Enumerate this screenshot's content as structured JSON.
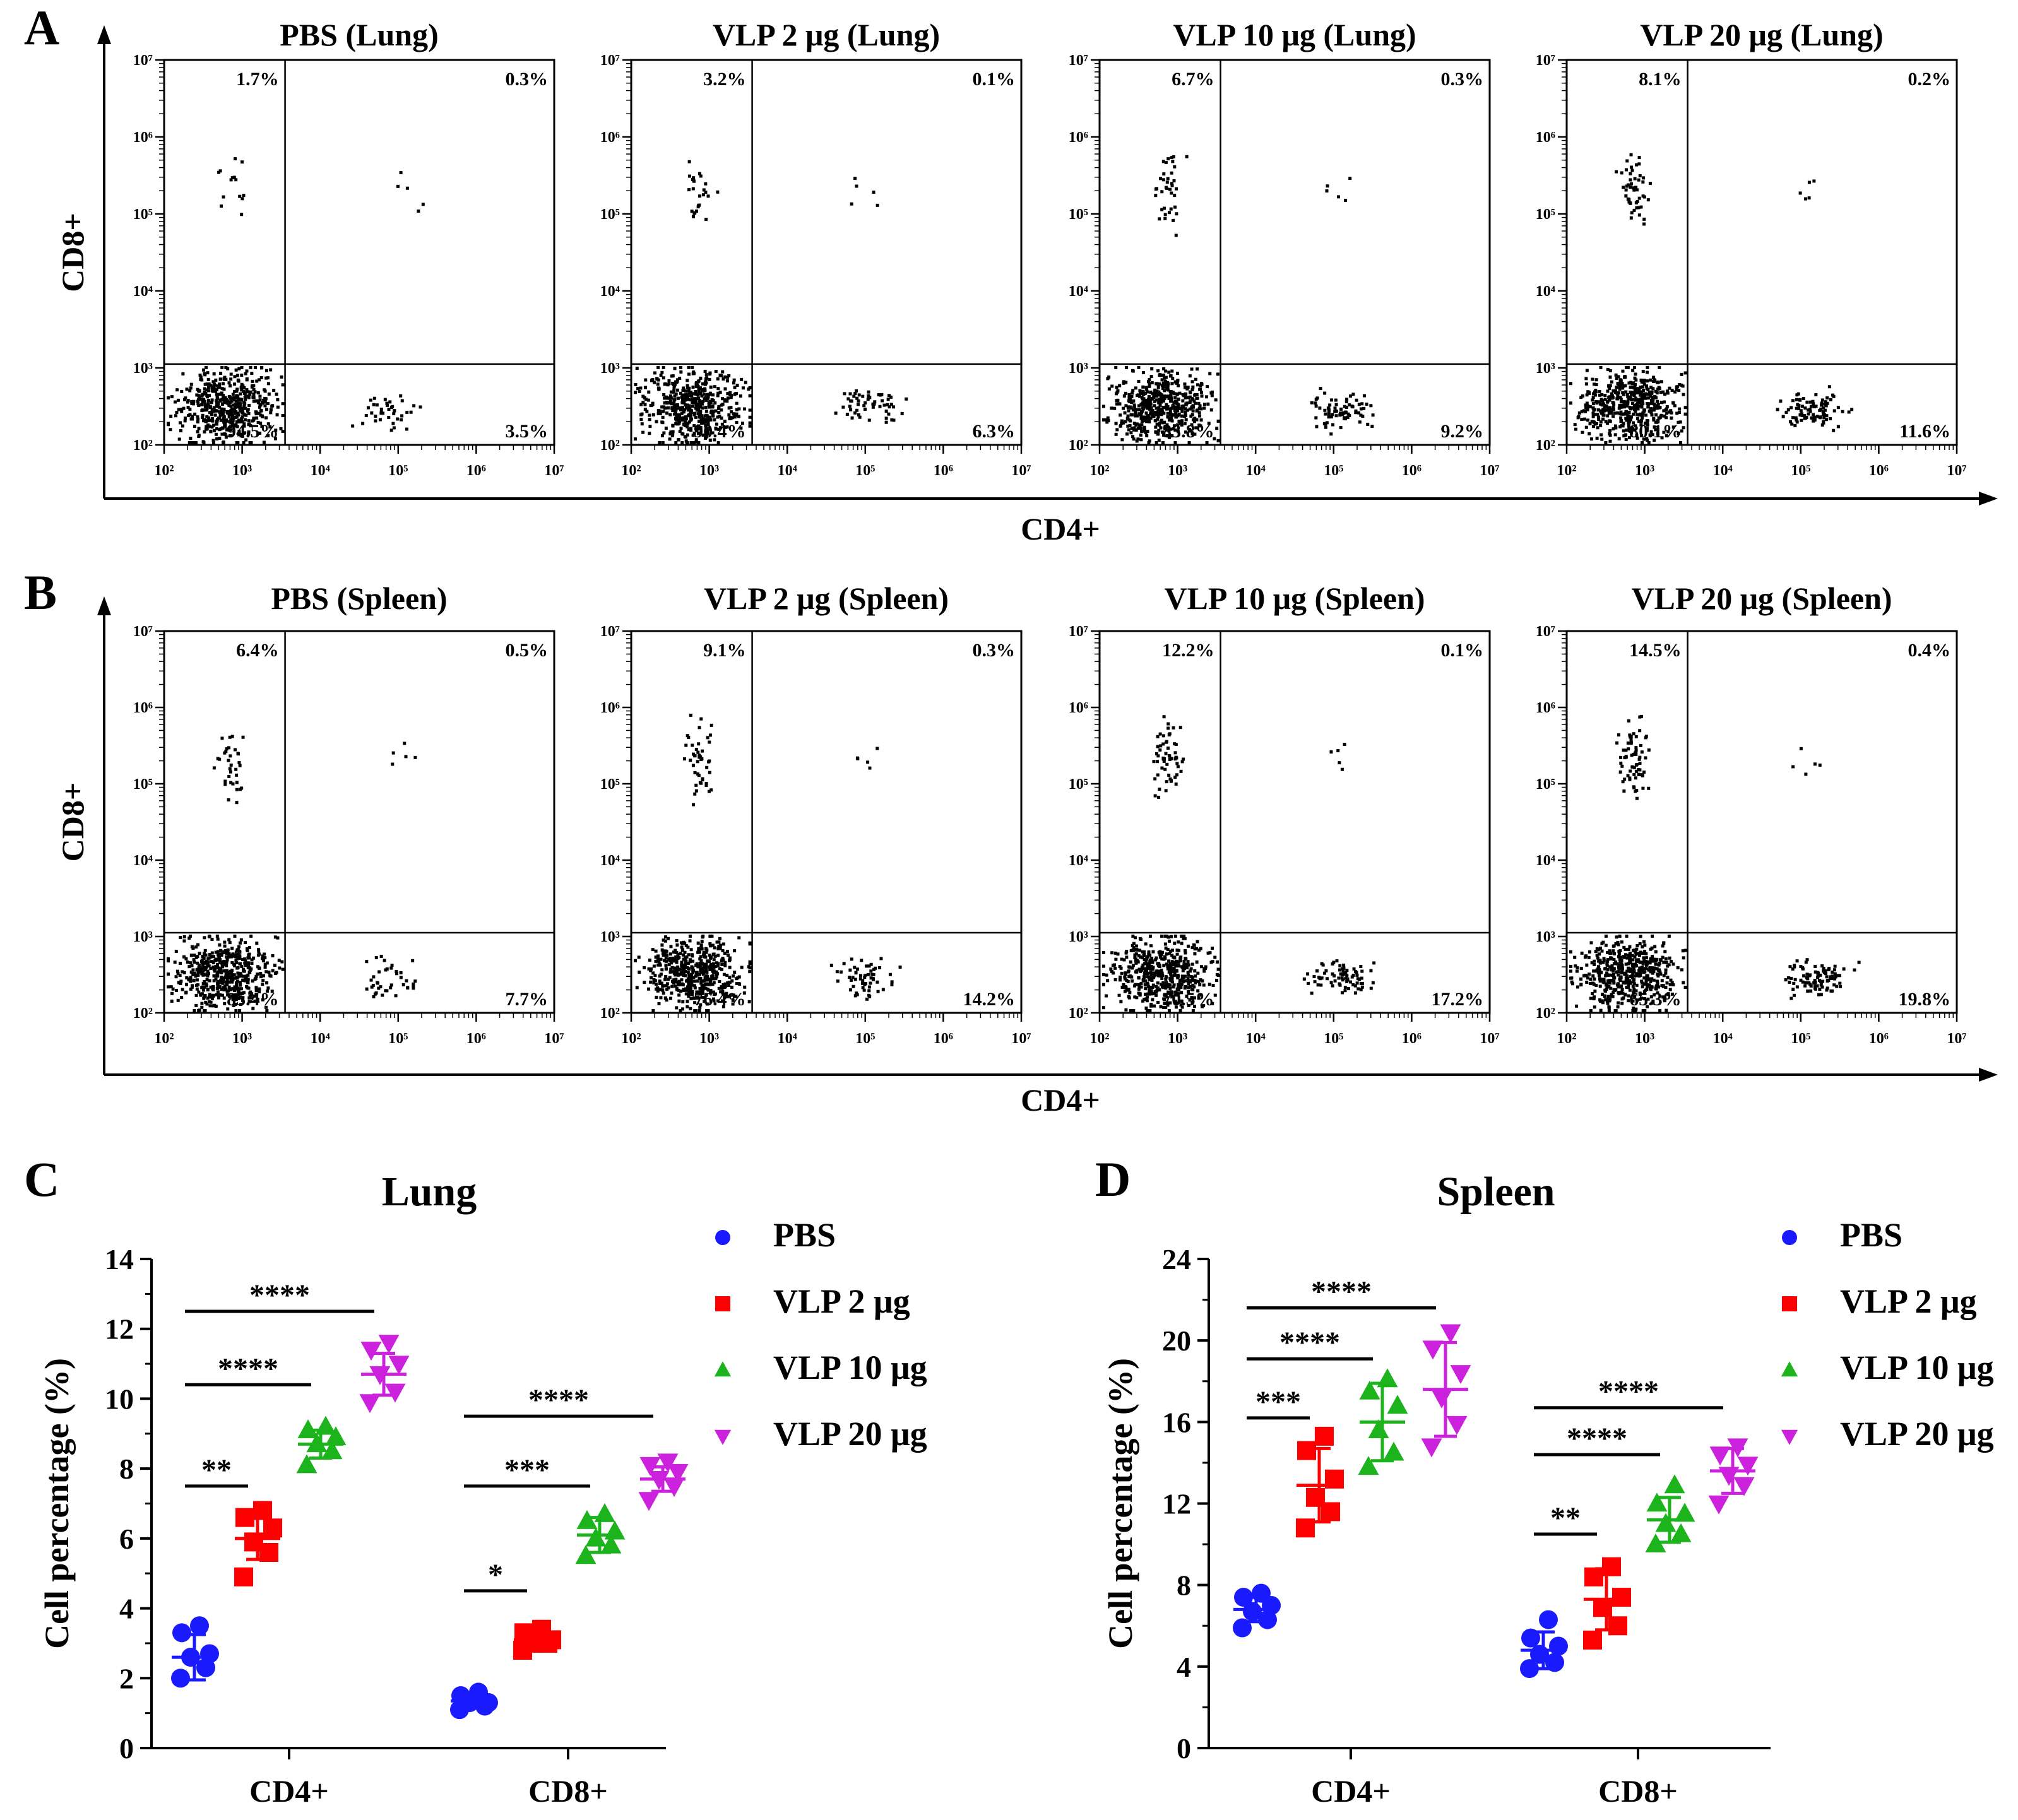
{
  "figure": {
    "panel_letters": [
      "A",
      "B",
      "C",
      "D"
    ],
    "flow": {
      "x_axis_label": "CD4+",
      "y_axis_label": "CD8+",
      "axis_ticks": [
        "10²",
        "10³",
        "10⁴",
        "10⁵",
        "10⁶",
        "10⁷"
      ],
      "rows": [
        {
          "letter": "A",
          "plots": [
            {
              "title": "PBS (Lung)",
              "pct": {
                "ul": "1.7%",
                "ur": "0.3%",
                "ll": "94.5%",
                "lr": "3.5%"
              }
            },
            {
              "title": "VLP 2 μg (Lung)",
              "pct": {
                "ul": "3.2%",
                "ur": "0.1%",
                "ll": "90.4%",
                "lr": "6.3%"
              }
            },
            {
              "title": "VLP 10 μg (Lung)",
              "pct": {
                "ul": "6.7%",
                "ur": "0.3%",
                "ll": "83.8%",
                "lr": "9.2%"
              }
            },
            {
              "title": "VLP 20 μg (Lung)",
              "pct": {
                "ul": "8.1%",
                "ur": "0.2%",
                "ll": "80.1%",
                "lr": "11.6%"
              }
            }
          ]
        },
        {
          "letter": "B",
          "plots": [
            {
              "title": "PBS (Spleen)",
              "pct": {
                "ul": "6.4%",
                "ur": "0.5%",
                "ll": "85.4%",
                "lr": "7.7%"
              }
            },
            {
              "title": "VLP 2 μg (Spleen)",
              "pct": {
                "ul": "9.1%",
                "ur": "0.3%",
                "ll": "76.4%",
                "lr": "14.2%"
              }
            },
            {
              "title": "VLP 10 μg (Spleen)",
              "pct": {
                "ul": "12.2%",
                "ur": "0.1%",
                "ll": "70.5%",
                "lr": "17.2%"
              }
            },
            {
              "title": "VLP 20 μg (Spleen)",
              "pct": {
                "ul": "14.5%",
                "ur": "0.4%",
                "ll": "65.3%",
                "lr": "19.8%"
              }
            }
          ]
        }
      ]
    },
    "legend": [
      {
        "label": "PBS",
        "color": "#1a1aff",
        "marker": "circle"
      },
      {
        "label": "VLP 2 μg",
        "color": "#ff0000",
        "marker": "square"
      },
      {
        "label": "VLP 10 μg",
        "color": "#1db31d",
        "marker": "triangle-up"
      },
      {
        "label": "VLP 20 μg",
        "color": "#cc22dd",
        "marker": "triangle-down"
      }
    ]
  },
  "chart_data": [
    {
      "type": "scatter",
      "panel": "C",
      "title": "Lung",
      "ylabel": "Cell percentage (%)",
      "ylim": [
        0,
        14
      ],
      "yticks": [
        0,
        2,
        4,
        6,
        8,
        10,
        12,
        14
      ],
      "categories": [
        "CD4+",
        "CD8+"
      ],
      "series": [
        {
          "name": "PBS",
          "mean": [
            2.6,
            1.35
          ],
          "sd": [
            0.65,
            0.2
          ],
          "points": [
            [
              2.0,
              2.3,
              2.6,
              2.7,
              3.3,
              3.5
            ],
            [
              1.1,
              1.2,
              1.3,
              1.3,
              1.5,
              1.6
            ]
          ]
        },
        {
          "name": "VLP 2 μg",
          "mean": [
            6.0,
            3.1
          ],
          "sd": [
            0.6,
            0.15
          ],
          "points": [
            [
              4.9,
              5.6,
              5.9,
              6.3,
              6.6,
              6.8
            ],
            [
              2.8,
              3.0,
              3.0,
              3.1,
              3.3,
              3.4
            ]
          ]
        },
        {
          "name": "VLP 10 μg",
          "mean": [
            8.7,
            6.1
          ],
          "sd": [
            0.4,
            0.5
          ],
          "points": [
            [
              8.1,
              8.5,
              8.7,
              8.9,
              9.1,
              9.2
            ],
            [
              5.5,
              5.8,
              6.0,
              6.2,
              6.5,
              6.7
            ]
          ]
        },
        {
          "name": "VLP 20 μg",
          "mean": [
            10.7,
            7.7
          ],
          "sd": [
            0.6,
            0.35
          ],
          "points": [
            [
              9.9,
              10.2,
              10.7,
              11.0,
              11.4,
              11.6
            ],
            [
              7.1,
              7.5,
              7.7,
              7.9,
              8.1,
              8.2
            ]
          ]
        }
      ],
      "significance": [
        {
          "category": 0,
          "from": 0,
          "to": 1,
          "y": 7.5,
          "label": "**"
        },
        {
          "category": 0,
          "from": 0,
          "to": 2,
          "y": 10.4,
          "label": "****"
        },
        {
          "category": 0,
          "from": 0,
          "to": 3,
          "y": 12.5,
          "label": "****"
        },
        {
          "category": 1,
          "from": 0,
          "to": 1,
          "y": 4.5,
          "label": "*"
        },
        {
          "category": 1,
          "from": 0,
          "to": 2,
          "y": 7.5,
          "label": "***"
        },
        {
          "category": 1,
          "from": 0,
          "to": 3,
          "y": 9.5,
          "label": "****"
        }
      ]
    },
    {
      "type": "scatter",
      "panel": "D",
      "title": "Spleen",
      "ylabel": "Cell percentage (%)",
      "ylim": [
        0,
        24
      ],
      "yticks": [
        0,
        4,
        8,
        12,
        16,
        20,
        24
      ],
      "categories": [
        "CD4+",
        "CD8+"
      ],
      "series": [
        {
          "name": "PBS",
          "mean": [
            6.8,
            4.8
          ],
          "sd": [
            0.6,
            0.9
          ],
          "points": [
            [
              5.9,
              6.3,
              6.7,
              7.0,
              7.4,
              7.6
            ],
            [
              3.9,
              4.2,
              4.6,
              5.0,
              5.4,
              6.3
            ]
          ]
        },
        {
          "name": "VLP 2 μg",
          "mean": [
            12.9,
            7.3
          ],
          "sd": [
            1.8,
            1.5
          ],
          "points": [
            [
              10.8,
              11.6,
              12.3,
              13.2,
              14.6,
              15.3
            ],
            [
              5.3,
              6.0,
              6.9,
              7.4,
              8.4,
              8.9
            ]
          ]
        },
        {
          "name": "VLP 10 μg",
          "mean": [
            16.0,
            11.2
          ],
          "sd": [
            1.9,
            1.1
          ],
          "points": [
            [
              13.8,
              14.5,
              15.6,
              16.8,
              17.5,
              18.1
            ],
            [
              10.0,
              10.5,
              11.0,
              11.5,
              12.0,
              12.9
            ]
          ]
        },
        {
          "name": "VLP 20 μg",
          "mean": [
            17.6,
            13.6
          ],
          "sd": [
            2.3,
            1.1
          ],
          "points": [
            [
              14.8,
              15.9,
              17.2,
              18.4,
              19.6,
              20.4
            ],
            [
              12.0,
              12.9,
              13.4,
              13.9,
              14.4,
              14.8
            ]
          ]
        }
      ],
      "significance": [
        {
          "category": 0,
          "from": 0,
          "to": 1,
          "y": 16.2,
          "label": "***"
        },
        {
          "category": 0,
          "from": 0,
          "to": 2,
          "y": 19.1,
          "label": "****"
        },
        {
          "category": 0,
          "from": 0,
          "to": 3,
          "y": 21.6,
          "label": "****"
        },
        {
          "category": 1,
          "from": 0,
          "to": 1,
          "y": 10.5,
          "label": "**"
        },
        {
          "category": 1,
          "from": 0,
          "to": 2,
          "y": 14.4,
          "label": "****"
        },
        {
          "category": 1,
          "from": 0,
          "to": 3,
          "y": 16.7,
          "label": "****"
        }
      ]
    }
  ]
}
